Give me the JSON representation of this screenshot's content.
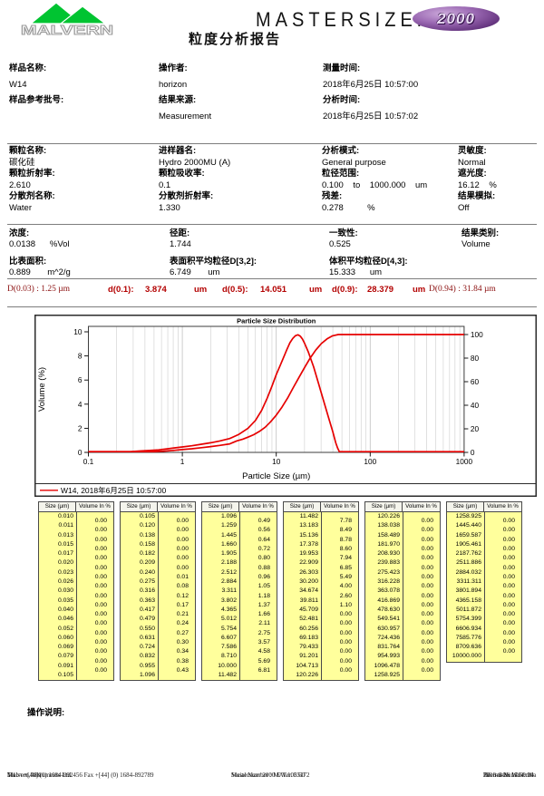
{
  "header": {
    "logo_text": "MALVERN",
    "brand": "MASTERSIZER",
    "badge": "2000",
    "report_title": "粒度分析报告",
    "brand_color": "#141414",
    "logo_green": "#00c431",
    "badge_purple": "#6b3a85"
  },
  "info_sections": [
    {
      "columns": [
        [
          {
            "label": "样品名称:",
            "value": "W14"
          },
          {
            "label": "样品参考批号:",
            "value": ""
          }
        ],
        [
          {
            "label": "操作者:",
            "value": "horizon"
          },
          {
            "label": "结果来源:",
            "value": "Measurement"
          }
        ],
        [
          {
            "label": "测量时间:",
            "value": "2018年6月25日 10:57:00"
          },
          {
            "label": "分析时间:",
            "value": "2018年6月25日 10:57:02"
          }
        ]
      ]
    },
    {
      "columns": [
        [
          {
            "label": "颗粒名称:",
            "value": "碳化硅"
          },
          {
            "label": "颗粒折射率:",
            "value": "2.610"
          },
          {
            "label": "分散剂名称:",
            "value": "Water"
          }
        ],
        [
          {
            "label": "进样器名:",
            "value": "Hydro 2000MU (A)"
          },
          {
            "label": "颗粒吸收率:",
            "value": "0.1"
          },
          {
            "label": "分散剂折射率:",
            "value": "1.330"
          }
        ],
        [
          {
            "label": "分析模式:",
            "value": "General purpose"
          },
          {
            "label": "粒径范围:",
            "value": "0.100    to    1000.000    um"
          },
          {
            "label": "残差:",
            "value": "0.278          %"
          }
        ],
        [
          {
            "label": "灵敏度:",
            "value": "Normal"
          },
          {
            "label": "遮光度:",
            "value": "16.12    %"
          },
          {
            "label": "结果模拟:",
            "value": "Off"
          }
        ]
      ]
    },
    {
      "columns": [
        [
          {
            "label": "浓度:",
            "value": "0.0138      %Vol"
          },
          {
            "label": "比表面积:",
            "value": "0.889       m^2/g"
          }
        ],
        [
          {
            "label": "径距:",
            "value": "1.744"
          },
          {
            "label": "表面积平均粒径D[3,2]:",
            "value": "6.749       um"
          }
        ],
        [
          {
            "label": "一致性:",
            "value": "0.525"
          },
          {
            "label": "体积平均粒径D[4,3]:",
            "value": "15.333      um"
          }
        ],
        [
          {
            "label": "结果类别:",
            "value": "Volume"
          }
        ]
      ]
    }
  ],
  "d_row": {
    "d003": "D(0.03) : 1.25 µm",
    "d01_label": "d(0.1):",
    "d01_value": "3.874",
    "d01_unit": "um",
    "d05_label": "d(0.5):",
    "d05_value": "14.051",
    "d05_unit": "um",
    "d09_label": "d(0.9):",
    "d09_value": "28.379",
    "d09_unit": "um",
    "d094": "D(0.94) : 31.84 µm"
  },
  "chart_data": {
    "type": "line",
    "title": "Particle Size Distribution",
    "xlabel": "Particle Size (µm)",
    "ylabel": "Volume (%)",
    "x_scale": "log",
    "xlim": [
      0.1,
      1000
    ],
    "ylim_left": [
      0,
      10
    ],
    "ylim_right": [
      0,
      100
    ],
    "x_ticks": [
      "0.1",
      "1",
      "10",
      "100",
      "1000"
    ],
    "y_ticks_left": [
      0,
      2,
      4,
      6,
      8,
      10
    ],
    "y_ticks_right": [
      0,
      20,
      40,
      60,
      80,
      100
    ],
    "grid": "vertical-log-minor",
    "legend": "W14, 2018年6月25日 10:57:00",
    "line_color": "#e60000",
    "series": [
      {
        "name": "volume-frequency",
        "axis": "left",
        "points": [
          [
            0.1,
            0
          ],
          [
            0.22,
            0.01
          ],
          [
            0.28,
            0.06
          ],
          [
            0.35,
            0.11
          ],
          [
            0.45,
            0.16
          ],
          [
            0.56,
            0.21
          ],
          [
            0.7,
            0.3
          ],
          [
            0.85,
            0.38
          ],
          [
            1.0,
            0.45
          ],
          [
            1.26,
            0.55
          ],
          [
            1.6,
            0.68
          ],
          [
            2.0,
            0.8
          ],
          [
            2.5,
            0.95
          ],
          [
            3.2,
            1.15
          ],
          [
            4.0,
            1.5
          ],
          [
            5.0,
            2.0
          ],
          [
            6.0,
            2.65
          ],
          [
            7.0,
            3.5
          ],
          [
            8.0,
            4.5
          ],
          [
            9.0,
            5.5
          ],
          [
            10,
            6.45
          ],
          [
            11,
            7.2
          ],
          [
            12,
            7.9
          ],
          [
            13,
            8.55
          ],
          [
            14,
            9.1
          ],
          [
            15,
            9.45
          ],
          [
            16,
            9.68
          ],
          [
            17,
            9.75
          ],
          [
            18,
            9.65
          ],
          [
            19,
            9.4
          ],
          [
            20,
            9.05
          ],
          [
            22,
            8.3
          ],
          [
            25,
            7.1
          ],
          [
            28,
            5.8
          ],
          [
            30,
            5.0
          ],
          [
            33,
            3.9
          ],
          [
            36,
            2.9
          ],
          [
            40,
            1.7
          ],
          [
            43,
            0.8
          ],
          [
            45,
            0.35
          ],
          [
            47,
            0.05
          ],
          [
            48,
            0
          ],
          [
            100,
            0
          ],
          [
            1000,
            0
          ]
        ]
      },
      {
        "name": "cumulative-undersize",
        "axis": "right",
        "points": [
          [
            0.1,
            0
          ],
          [
            0.24,
            0.05
          ],
          [
            0.3,
            0.15
          ],
          [
            0.4,
            0.4
          ],
          [
            0.5,
            0.7
          ],
          [
            0.63,
            1.1
          ],
          [
            0.8,
            1.7
          ],
          [
            1.0,
            2.4
          ],
          [
            1.26,
            3.1
          ],
          [
            1.6,
            4.0
          ],
          [
            2.0,
            4.9
          ],
          [
            2.5,
            5.9
          ],
          [
            3.2,
            7.2
          ],
          [
            3.8,
            9.8
          ],
          [
            4.4,
            11.2
          ],
          [
            5.0,
            12.9
          ],
          [
            5.75,
            15.0
          ],
          [
            6.6,
            17.8
          ],
          [
            7.6,
            21.3
          ],
          [
            8.7,
            25.9
          ],
          [
            10,
            31.6
          ],
          [
            11.5,
            38.4
          ],
          [
            13.2,
            46.1
          ],
          [
            15.1,
            54.6
          ],
          [
            17.4,
            63.4
          ],
          [
            20,
            72.0
          ],
          [
            22.9,
            79.9
          ],
          [
            26.3,
            86.8
          ],
          [
            30.2,
            92.3
          ],
          [
            34.7,
            96.3
          ],
          [
            39.8,
            98.9
          ],
          [
            45.7,
            100
          ],
          [
            100,
            100
          ],
          [
            1000,
            100
          ]
        ]
      }
    ]
  },
  "size_table": {
    "col_headers": [
      "Size (µm)",
      "Volume In %"
    ],
    "groups": [
      {
        "sizes": [
          "0.010",
          "0.011",
          "0.013",
          "0.015",
          "0.017",
          "0.020",
          "0.023",
          "0.026",
          "0.030",
          "0.035",
          "0.040",
          "0.046",
          "0.052",
          "0.060",
          "0.069",
          "0.079",
          "0.091",
          "0.105"
        ],
        "values": [
          "0.00",
          "0.00",
          "0.00",
          "0.00",
          "0.00",
          "0.00",
          "0.00",
          "0.00",
          "0.00",
          "0.00",
          "0.00",
          "0.00",
          "0.00",
          "0.00",
          "0.00",
          "0.00",
          "0.00"
        ]
      },
      {
        "sizes": [
          "0.105",
          "0.120",
          "0.138",
          "0.158",
          "0.182",
          "0.209",
          "0.240",
          "0.275",
          "0.316",
          "0.363",
          "0.417",
          "0.479",
          "0.550",
          "0.631",
          "0.724",
          "0.832",
          "0.955",
          "1.096"
        ],
        "values": [
          "0.00",
          "0.00",
          "0.00",
          "0.00",
          "0.00",
          "0.00",
          "0.01",
          "0.08",
          "0.12",
          "0.17",
          "0.21",
          "0.24",
          "0.27",
          "0.30",
          "0.34",
          "0.38",
          "0.43"
        ]
      },
      {
        "sizes": [
          "1.096",
          "1.259",
          "1.445",
          "1.660",
          "1.905",
          "2.188",
          "2.512",
          "2.884",
          "3.311",
          "3.802",
          "4.365",
          "5.012",
          "5.754",
          "6.607",
          "7.586",
          "8.710",
          "10.000",
          "11.482"
        ],
        "values": [
          "0.49",
          "0.56",
          "0.64",
          "0.72",
          "0.80",
          "0.88",
          "0.96",
          "1.05",
          "1.18",
          "1.37",
          "1.66",
          "2.11",
          "2.75",
          "3.57",
          "4.58",
          "5.69",
          "6.81"
        ]
      },
      {
        "sizes": [
          "11.482",
          "13.183",
          "15.136",
          "17.378",
          "19.953",
          "22.909",
          "26.303",
          "30.200",
          "34.674",
          "39.811",
          "45.709",
          "52.481",
          "60.256",
          "69.183",
          "79.433",
          "91.201",
          "104.713",
          "120.226"
        ],
        "values": [
          "7.78",
          "8.49",
          "8.78",
          "8.60",
          "7.94",
          "6.85",
          "5.49",
          "4.00",
          "2.60",
          "1.10",
          "0.00",
          "0.00",
          "0.00",
          "0.00",
          "0.00",
          "0.00",
          "0.00"
        ]
      },
      {
        "sizes": [
          "120.226",
          "138.038",
          "158.489",
          "181.970",
          "208.930",
          "239.883",
          "275.423",
          "316.228",
          "363.078",
          "416.869",
          "478.630",
          "549.541",
          "630.957",
          "724.436",
          "831.764",
          "954.993",
          "1096.478",
          "1258.925"
        ],
        "values": [
          "0.00",
          "0.00",
          "0.00",
          "0.00",
          "0.00",
          "0.00",
          "0.00",
          "0.00",
          "0.00",
          "0.00",
          "0.00",
          "0.00",
          "0.00",
          "0.00",
          "0.00",
          "0.00",
          "0.00"
        ]
      },
      {
        "sizes": [
          "1258.925",
          "1445.440",
          "1659.587",
          "1905.461",
          "2187.762",
          "2511.886",
          "2884.032",
          "3311.311",
          "3801.894",
          "4365.158",
          "5011.872",
          "5754.399",
          "6606.934",
          "7585.776",
          "8709.636",
          "10000.000"
        ],
        "values": [
          "0.00",
          "0.00",
          "0.00",
          "0.00",
          "0.00",
          "0.00",
          "0.00",
          "0.00",
          "0.00",
          "0.00",
          "0.00",
          "0.00",
          "0.00",
          "0.00",
          "0.00"
        ]
      }
    ]
  },
  "operation_label": "操作说明:",
  "footer": {
    "left": [
      "Malvern Instruments Ltd.",
      "Malvern, UK",
      "Tel := +[44] (0) 1684-892456 Fax +[44] (0) 1684-892789"
    ],
    "center": [
      "Mastersizer 2000 E Ver. 5.60",
      "Serial Number : MAL1085172"
    ],
    "right": [
      "File name: W14.mea",
      "Record Number: 29",
      "2018-6-26 15:59:04"
    ]
  }
}
